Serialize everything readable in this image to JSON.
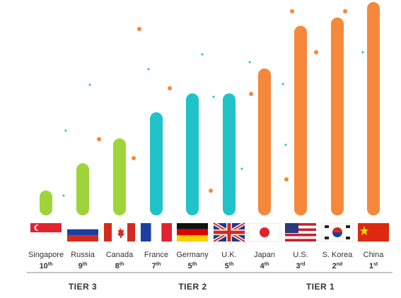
{
  "chart_data": {
    "type": "bar",
    "categories": [
      "Singapore",
      "Russia",
      "Canada",
      "France",
      "Germany",
      "U.K.",
      "Japan",
      "U.S.",
      "S. Korea",
      "China"
    ],
    "rank_numbers": [
      "10",
      "9",
      "8",
      "7",
      "5",
      "5",
      "4",
      "3",
      "2",
      "1"
    ],
    "rank_suffixes": [
      "th",
      "th",
      "th",
      "th",
      "th",
      "th",
      "th",
      "rd",
      "nd",
      "st"
    ],
    "series": [
      {
        "values": [
          2.1,
          4.4,
          6.5,
          8.7,
          10.3,
          10.3,
          12.4,
          16.0,
          16.7,
          18.0
        ]
      }
    ],
    "ylim": [
      0,
      18
    ],
    "grid": false,
    "title": "",
    "xlabel": "",
    "ylabel": "",
    "groups": [
      {
        "label": "TIER 3",
        "members": [
          0,
          1,
          2
        ],
        "color": "#9ed43a"
      },
      {
        "label": "TIER 2",
        "members": [
          3,
          4,
          5
        ],
        "color": "#1fc3c9"
      },
      {
        "label": "TIER 1",
        "members": [
          6,
          7,
          8,
          9
        ],
        "color": "#f5883a"
      }
    ],
    "flags": [
      "singapore-flag",
      "russia-flag",
      "canada-flag",
      "france-flag",
      "germany-flag",
      "uk-flag",
      "japan-flag",
      "us-flag",
      "south-korea-flag",
      "china-flag"
    ],
    "tier_line_color": "#888888",
    "decor_dot_colors": {
      "orange": "#f5883a",
      "teal": "#1fc3c9"
    }
  }
}
